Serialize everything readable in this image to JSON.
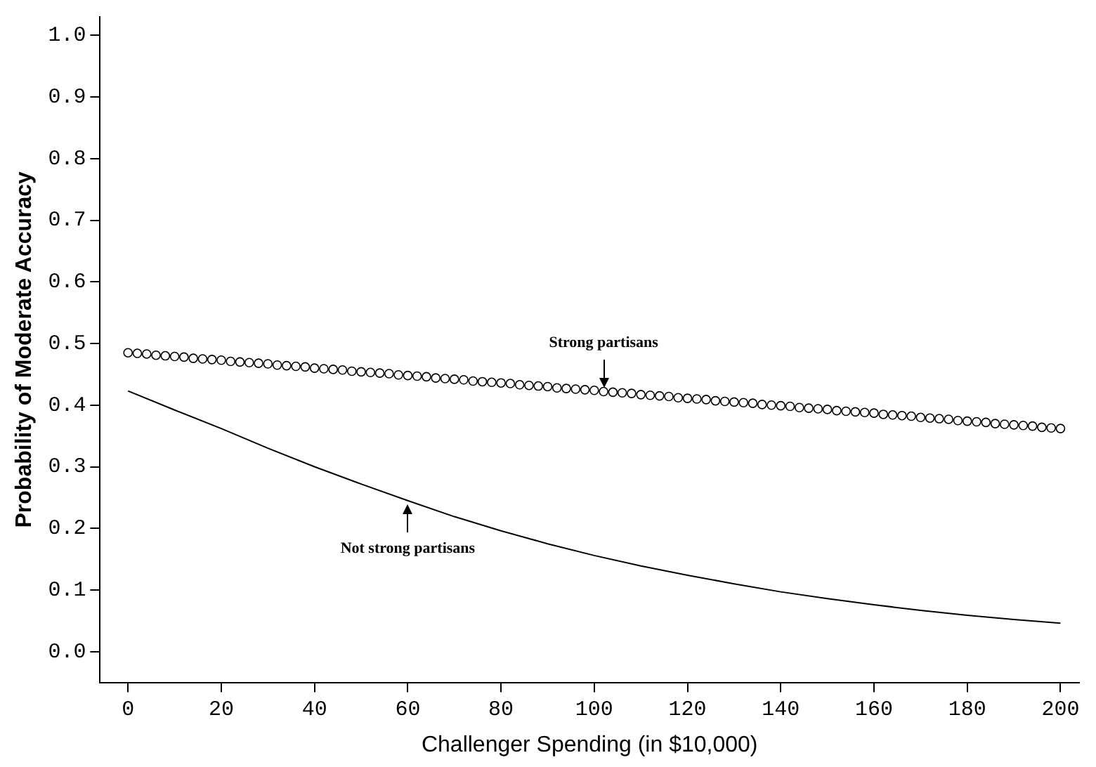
{
  "chart_data": {
    "type": "line",
    "xlabel": "Challenger Spending (in $10,000)",
    "ylabel": "Probability of Moderate Accuracy",
    "xlim": [
      -6,
      204
    ],
    "xticks": [
      0,
      20,
      40,
      60,
      80,
      100,
      120,
      140,
      160,
      180,
      200
    ],
    "ylim": [
      -0.05,
      1.03
    ],
    "yticks": [
      {
        "value": 0,
        "label": "0.0"
      },
      0.1,
      0.2,
      0.3,
      0.4,
      0.5,
      0.6,
      0.7,
      0.8,
      0.9,
      {
        "value": 1,
        "label": "1.0"
      }
    ],
    "grid": false,
    "legend": false,
    "series": [
      {
        "type": "scatter",
        "marker": "circle",
        "color": "#000000",
        "x": [
          0,
          2,
          4,
          6,
          8,
          10,
          12,
          14,
          16,
          18,
          20,
          22,
          24,
          26,
          28,
          30,
          32,
          34,
          36,
          38,
          40,
          42,
          44,
          46,
          48,
          50,
          52,
          54,
          56,
          58,
          60,
          62,
          64,
          66,
          68,
          70,
          72,
          74,
          76,
          78,
          80,
          82,
          84,
          86,
          88,
          90,
          92,
          94,
          96,
          98,
          100,
          102,
          104,
          106,
          108,
          110,
          112,
          114,
          116,
          118,
          120,
          122,
          124,
          126,
          128,
          130,
          132,
          134,
          136,
          138,
          140,
          142,
          144,
          146,
          148,
          150,
          152,
          154,
          156,
          158,
          160,
          162,
          164,
          166,
          168,
          170,
          172,
          174,
          176,
          178,
          180,
          182,
          184,
          186,
          188,
          190,
          192,
          194,
          196,
          198,
          200
        ],
        "values": [
          0.485,
          0.484,
          0.483,
          0.481,
          0.48,
          0.479,
          0.478,
          0.476,
          0.475,
          0.474,
          0.473,
          0.471,
          0.47,
          0.469,
          0.468,
          0.467,
          0.465,
          0.464,
          0.463,
          0.462,
          0.46,
          0.459,
          0.458,
          0.457,
          0.455,
          0.454,
          0.453,
          0.452,
          0.451,
          0.449,
          0.448,
          0.447,
          0.446,
          0.444,
          0.443,
          0.442,
          0.441,
          0.439,
          0.438,
          0.437,
          0.436,
          0.435,
          0.433,
          0.432,
          0.431,
          0.43,
          0.428,
          0.427,
          0.426,
          0.425,
          0.424,
          0.422,
          0.421,
          0.42,
          0.419,
          0.417,
          0.416,
          0.415,
          0.414,
          0.412,
          0.411,
          0.41,
          0.409,
          0.407,
          0.406,
          0.405,
          0.404,
          0.403,
          0.401,
          0.4,
          0.399,
          0.398,
          0.396,
          0.395,
          0.394,
          0.393,
          0.391,
          0.39,
          0.389,
          0.388,
          0.387,
          0.385,
          0.384,
          0.383,
          0.382,
          0.38,
          0.379,
          0.378,
          0.377,
          0.375,
          0.374,
          0.373,
          0.372,
          0.37,
          0.369,
          0.368,
          0.367,
          0.366,
          0.364,
          0.363,
          0.362
        ]
      },
      {
        "type": "line",
        "marker": "none",
        "line_style": "solid",
        "color": "#000000",
        "x": [
          0,
          10,
          20,
          30,
          40,
          50,
          60,
          70,
          80,
          90,
          100,
          110,
          120,
          130,
          140,
          150,
          160,
          170,
          180,
          190,
          200
        ],
        "values": [
          0.423,
          0.392,
          0.362,
          0.33,
          0.3,
          0.272,
          0.245,
          0.219,
          0.196,
          0.175,
          0.156,
          0.139,
          0.124,
          0.11,
          0.097,
          0.086,
          0.076,
          0.067,
          0.059,
          0.052,
          0.046
        ]
      }
    ],
    "annotations": [
      {
        "text": "Strong partisans",
        "x": 102,
        "y": 0.422
      },
      {
        "text": "Not strong partisans",
        "x": 60,
        "y": 0.245
      }
    ]
  }
}
